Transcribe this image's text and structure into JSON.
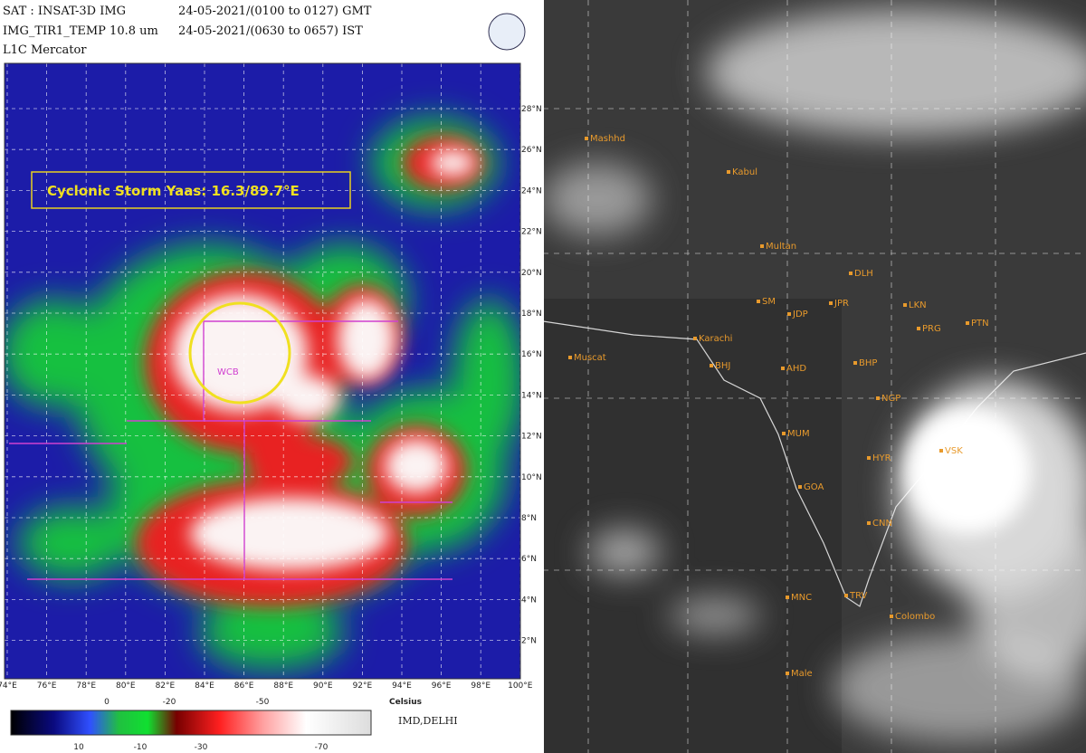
{
  "header": {
    "sat": "SAT : INSAT-3D IMG",
    "gmt": "24-05-2021/(0100 to 0127) GMT",
    "band": "IMG_TIR1_TEMP 10.8 um",
    "ist": "24-05-2021/(0630 to 0657) IST",
    "projection": "L1C Mercator"
  },
  "left_map": {
    "annotation": "Cyclonic Storm Yaas: 16.3/89.7°E",
    "center_label": "WCB",
    "lat_labels": [
      "28°N",
      "26°N",
      "24°N",
      "22°N",
      "20°N",
      "18°N",
      "16°N",
      "14°N",
      "12°N",
      "10°N",
      "8°N",
      "6°N",
      "4°N",
      "2°N"
    ],
    "lon_labels": [
      "74°E",
      "76°E",
      "78°E",
      "80°E",
      "82°E",
      "84°E",
      "86°E",
      "88°E",
      "90°E",
      "92°E",
      "94°E",
      "96°E",
      "98°E",
      "100°E"
    ]
  },
  "colorbar": {
    "top_labels": [
      "0",
      "-20",
      "-50"
    ],
    "bottom_labels": [
      "10",
      "-10",
      "-30",
      "-70"
    ],
    "unit": "Celsius",
    "credit": "IMD,DELHI"
  },
  "right_map": {
    "cities": [
      "Mashhd",
      "Kabul",
      "Multan",
      "Karachi",
      "Muscat",
      "SM",
      "JDP",
      "JPR",
      "DLH",
      "LKN",
      "PRG",
      "PTN",
      "BHJ",
      "AHD",
      "BHP",
      "NGP",
      "MUM",
      "GOA",
      "HYR",
      "VSK",
      "CNN",
      "MNC",
      "TRV",
      "Colombo",
      "Male"
    ]
  }
}
